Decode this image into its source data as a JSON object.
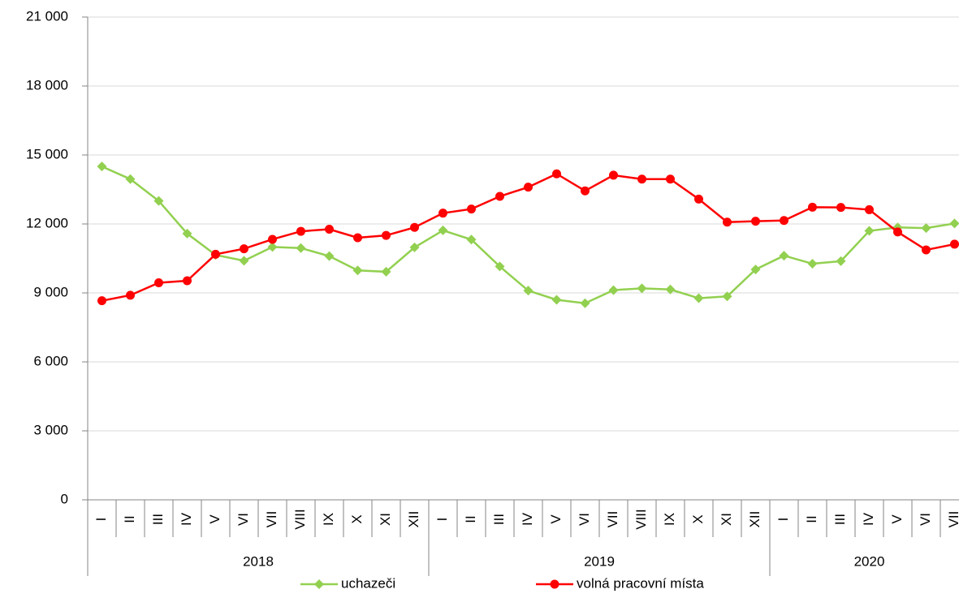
{
  "chart_data": {
    "type": "line",
    "category_groups": [
      {
        "name": "2018",
        "categories": [
          "I",
          "II",
          "III",
          "IV",
          "V",
          "VI",
          "VII",
          "VIII",
          "IX",
          "X",
          "XI",
          "XII"
        ]
      },
      {
        "name": "2019",
        "categories": [
          "I",
          "II",
          "III",
          "IV",
          "V",
          "VI",
          "VII",
          "VIII",
          "IX",
          "X",
          "XI",
          "XII"
        ]
      },
      {
        "name": "2020",
        "categories": [
          "I",
          "II",
          "III",
          "IV",
          "V",
          "VI",
          "VII"
        ]
      }
    ],
    "series": [
      {
        "name": "uchazeči",
        "color": "#92d050",
        "marker": "diamond",
        "values": [
          14500,
          13950,
          13000,
          11580,
          10650,
          10400,
          11000,
          10950,
          10600,
          9980,
          9920,
          10980,
          11720,
          11320,
          10150,
          9100,
          8700,
          8550,
          9120,
          9200,
          9150,
          8770,
          8850,
          10020,
          10620,
          10270,
          10380,
          11700,
          11850,
          11820,
          12020
        ]
      },
      {
        "name": "volná pracovní místa",
        "color": "#ff0000",
        "marker": "circle",
        "values": [
          8660,
          8900,
          9440,
          9530,
          10680,
          10920,
          11330,
          11680,
          11770,
          11400,
          11500,
          11850,
          12470,
          12650,
          13200,
          13600,
          14180,
          13440,
          14120,
          13950,
          13950,
          13080,
          12080,
          12120,
          12150,
          12730,
          12720,
          12620,
          11650,
          10870,
          11120
        ]
      }
    ],
    "ylim": [
      0,
      21000
    ],
    "yticks": [
      0,
      {
        "value": 3000,
        "label": "3 000"
      },
      {
        "value": 6000,
        "label": "6 000"
      },
      {
        "value": 9000,
        "label": "9 000"
      },
      {
        "value": 12000,
        "label": "12 000"
      },
      {
        "value": 15000,
        "label": "15 000"
      },
      {
        "value": 18000,
        "label": "18 000"
      },
      {
        "value": 21000,
        "label": "21 000"
      }
    ],
    "grid": true,
    "legend": "bottom"
  }
}
